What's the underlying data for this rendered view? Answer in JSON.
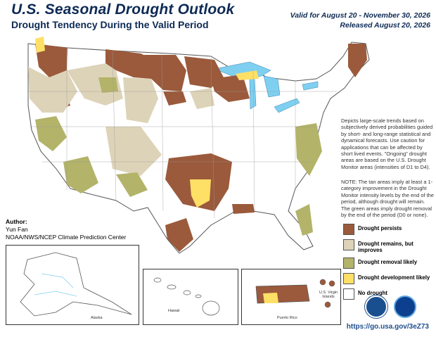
{
  "header": {
    "title": "U.S. Seasonal Drought Outlook",
    "subtitle": "Drought Tendency During the Valid Period",
    "valid_line": "Valid for August 20 - November 30, 2026",
    "released_line": "Released August 20, 2026"
  },
  "description": {
    "text": "Depicts large-scale trends based on subjectively derived probabilities guided by short- and long-range statistical and dynamical forecasts. Use caution for applications that can be affected by short lived events. \"Ongoing\" drought areas are based on the U.S. Drought Monitor areas (intensities of D1 to D4).",
    "note": "NOTE: The tan areas imply at least a 1-category improvement in the Drought Monitor intensity levels by the end of the period, although drought will remain. The green areas imply drought removal by the end of the period (D0 or none)."
  },
  "legend": [
    {
      "label": "Drought persists",
      "color": "#9b5a3c"
    },
    {
      "label": "Drought remains, but improves",
      "color": "#ddd3b8"
    },
    {
      "label": "Drought removal likely",
      "color": "#b3b36a"
    },
    {
      "label": "Drought development likely",
      "color": "#ffe066"
    },
    {
      "label": "No drought",
      "color": "#ffffff"
    }
  ],
  "author": {
    "heading": "Author:",
    "name": "Yun Fan",
    "org": "NOAA/NWS/NCEP Climate Prediction Center"
  },
  "insets": {
    "alaska": "Alaska",
    "hawaii": "Hawaii",
    "puerto_rico": "Puerto Rico",
    "usvi": "U.S. Virgin Islands"
  },
  "footer": {
    "url": "https://go.usa.gov/3eZ73"
  },
  "colors": {
    "persist": "#9b5a3c",
    "improve": "#ddd3b8",
    "removal": "#b3b36a",
    "develop": "#ffe066",
    "water": "#7fd0f0",
    "border": "#555555",
    "title": "#0d2a55"
  },
  "icons": [
    "usda-logo-icon",
    "noaa-logo-icon"
  ]
}
